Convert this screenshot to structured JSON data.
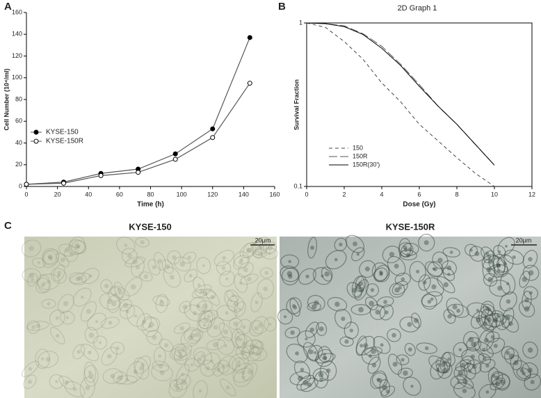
{
  "chart_data": [
    {
      "type": "line",
      "panel": "A",
      "x": [
        0,
        24,
        48,
        72,
        96,
        120,
        144
      ],
      "series": [
        {
          "name": "KYSE-150",
          "color": "#000000",
          "marker": "filled",
          "values": [
            2,
            4,
            12,
            16,
            30,
            53,
            137
          ]
        },
        {
          "name": "KYSE-150R",
          "color": "#000000",
          "marker": "open",
          "values": [
            2,
            3,
            10,
            13,
            25,
            45,
            95
          ]
        }
      ],
      "xlabel": "Time (h)",
      "ylabel": "Cell Number (10⁴/ml)",
      "xlim": [
        0,
        160
      ],
      "xticks": [
        0,
        20,
        40,
        60,
        80,
        100,
        120,
        140,
        160
      ],
      "ylim": [
        0,
        160
      ],
      "yticks": [
        0,
        20,
        40,
        60,
        80,
        100,
        120,
        140,
        160
      ],
      "legend": "left"
    },
    {
      "type": "line",
      "panel": "B",
      "title": "2D Graph 1",
      "x": [
        0,
        1,
        2,
        3,
        4,
        5,
        6,
        7,
        8,
        9,
        10
      ],
      "series": [
        {
          "name": "150",
          "color": "#444444",
          "dash": "short",
          "values": [
            1,
            0.94,
            0.77,
            0.6,
            0.43,
            0.33,
            0.24,
            0.19,
            0.15,
            0.12,
            0.1
          ]
        },
        {
          "name": "150R",
          "color": "#555555",
          "dash": "long",
          "values": [
            1,
            0.99,
            0.96,
            0.86,
            0.72,
            0.56,
            0.42,
            0.31,
            0.24,
            0.18,
            0.135
          ]
        },
        {
          "name": "150R(30')",
          "color": "#000000",
          "dash": "solid",
          "values": [
            1,
            0.99,
            0.95,
            0.85,
            0.7,
            0.55,
            0.41,
            0.31,
            0.24,
            0.18,
            0.135
          ]
        }
      ],
      "xlabel": "Dose (Gy)",
      "ylabel": "Survival Fraction",
      "xlim": [
        0,
        12
      ],
      "xticks": [
        0,
        2,
        4,
        6,
        8,
        10,
        12
      ],
      "ylim": [
        0.1,
        1
      ],
      "yticks": [
        0.1,
        1
      ],
      "ylog": true,
      "legend": "lower left"
    }
  ],
  "panel_c": {
    "label": "C",
    "images": [
      {
        "title": "KYSE-150",
        "scale_bar": "20μm"
      },
      {
        "title": "KYSE-150R",
        "scale_bar": "20μm"
      }
    ]
  }
}
